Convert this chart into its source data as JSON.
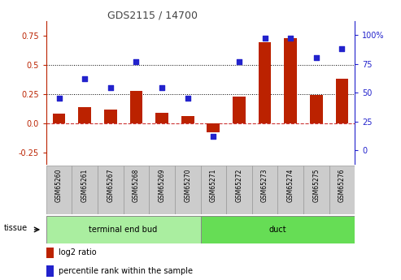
{
  "title": "GDS2115 / 14700",
  "samples": [
    "GSM65260",
    "GSM65261",
    "GSM65267",
    "GSM65268",
    "GSM65269",
    "GSM65270",
    "GSM65271",
    "GSM65272",
    "GSM65273",
    "GSM65274",
    "GSM65275",
    "GSM65276"
  ],
  "log2_ratio": [
    0.08,
    0.14,
    0.12,
    0.28,
    0.09,
    0.06,
    -0.08,
    0.23,
    0.7,
    0.73,
    0.24,
    0.38
  ],
  "percentile_rank": [
    45,
    62,
    54,
    77,
    54,
    45,
    12,
    77,
    97,
    97,
    80,
    88
  ],
  "tissue_groups": [
    {
      "label": "terminal end bud",
      "start": 0,
      "end": 6,
      "color": "#AAEEA0"
    },
    {
      "label": "duct",
      "start": 6,
      "end": 12,
      "color": "#66DD55"
    }
  ],
  "bar_color": "#BB2200",
  "dot_color": "#2222CC",
  "ylim_left": [
    -0.35,
    0.88
  ],
  "ylim_right": [
    -11.67,
    112
  ],
  "yticks_left": [
    -0.25,
    0.0,
    0.25,
    0.5,
    0.75
  ],
  "yticks_right": [
    0,
    25,
    50,
    75,
    100
  ],
  "hlines": [
    0.25,
    0.5
  ],
  "zero_line_color": "#CC3333",
  "dot_style": "s",
  "dot_size": 14,
  "bar_width": 0.5,
  "title_color": "#444444",
  "spine_color": "#999999",
  "tick_box_color": "#CCCCCC",
  "tick_box_edge": "#999999"
}
